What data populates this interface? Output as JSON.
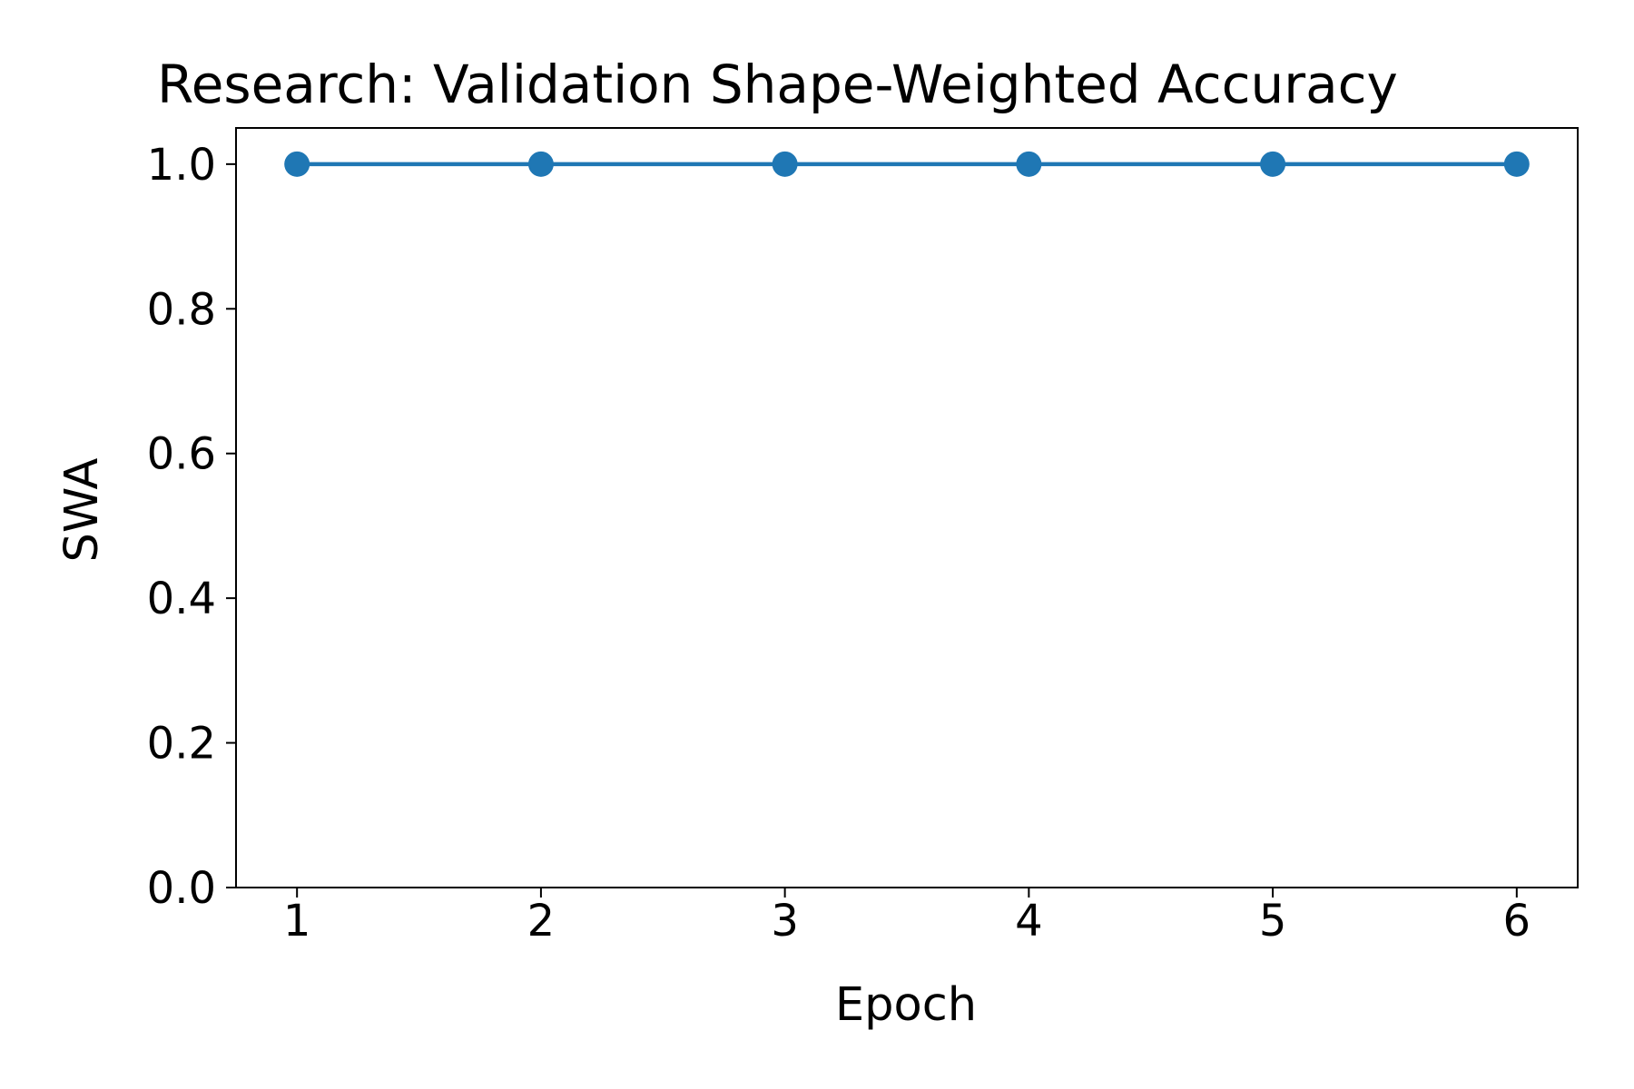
{
  "chart_data": {
    "type": "line",
    "title": "Research: Validation Shape-Weighted Accuracy",
    "xlabel": "Epoch",
    "ylabel": "SWA",
    "x": [
      1,
      2,
      3,
      4,
      5,
      6
    ],
    "series": [
      {
        "values": [
          1.0,
          1.0,
          1.0,
          1.0,
          1.0,
          1.0
        ],
        "color": "#1f77b4",
        "marker": "circle"
      }
    ],
    "xticks": [
      "1",
      "2",
      "3",
      "4",
      "5",
      "6"
    ],
    "yticks": [
      "0.0",
      "0.2",
      "0.4",
      "0.6",
      "0.8",
      "1.0"
    ],
    "xlim": [
      0.75,
      6.25
    ],
    "ylim": [
      0.0,
      1.05
    ],
    "grid": false,
    "legend": "none"
  }
}
